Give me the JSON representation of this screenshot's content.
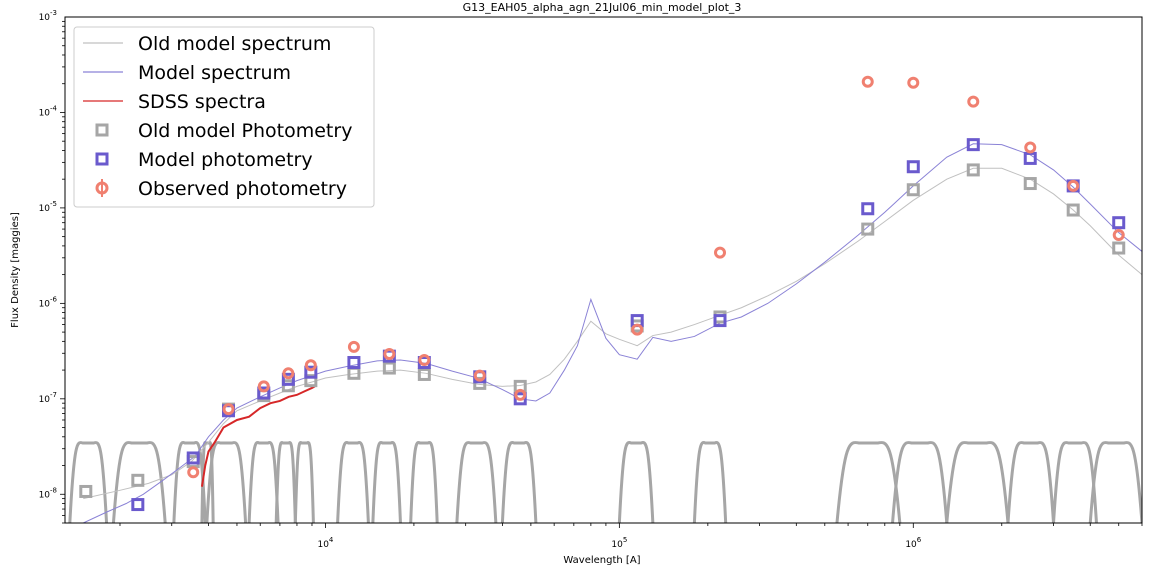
{
  "chart_data": {
    "type": "scatter",
    "title": "G13_EAH05_alpha_agn_21Jul06_min_model_plot_3",
    "xlabel": "Wavelength [A]",
    "ylabel": "Flux Density [maggies]",
    "xscale": "log",
    "yscale": "log",
    "xlim": [
      1300,
      6000000
    ],
    "ylim": [
      5e-09,
      0.001
    ],
    "x_ticks": [
      {
        "value": 10000,
        "label": "10^4"
      },
      {
        "value": 100000,
        "label": "10^5"
      },
      {
        "value": 1000000,
        "label": "10^6"
      }
    ],
    "y_ticks": [
      {
        "value": 1e-08,
        "label": "10^-8"
      },
      {
        "value": 1e-07,
        "label": "10^-7"
      },
      {
        "value": 1e-06,
        "label": "10^-6"
      },
      {
        "value": 1e-05,
        "label": "10^-5"
      },
      {
        "value": 0.0001,
        "label": "10^-4"
      },
      {
        "value": 0.001,
        "label": "10^-3"
      }
    ],
    "legend_position": "top-left",
    "legend": [
      {
        "label": "Old model spectrum",
        "kind": "line",
        "color": "#c0c0c0"
      },
      {
        "label": "Model spectrum",
        "kind": "line",
        "color": "#8a82d6"
      },
      {
        "label": "SDSS spectra",
        "kind": "line",
        "color": "#d62728"
      },
      {
        "label": "Old model Photometry",
        "kind": "square",
        "color": "#a6a6a6"
      },
      {
        "label": "Model photometry",
        "kind": "square",
        "color": "#6a5acd"
      },
      {
        "label": "Observed photometry",
        "kind": "circle",
        "color": "#f08070"
      }
    ],
    "series": [
      {
        "name": "Old model spectrum",
        "kind": "line",
        "color": "#c0c0c0",
        "x": [
          1500,
          2000,
          2500,
          3000,
          3500,
          4000,
          4500,
          5000,
          6000,
          7000,
          8000,
          9000,
          10000,
          12000,
          15000,
          18000,
          22000,
          27000,
          33000,
          40000,
          46000,
          52000,
          58000,
          65000,
          72000,
          80000,
          90000,
          100000,
          115000,
          130000,
          150000,
          180000,
          220000,
          260000,
          320000,
          400000,
          500000,
          650000,
          800000,
          1000000,
          1300000,
          1600000,
          2000000,
          2500000,
          3000000,
          3500000,
          4000000,
          5000000,
          6000000
        ],
        "y": [
          9e-09,
          1.1e-08,
          1.3e-08,
          1.6e-08,
          2.2e-08,
          3.5e-08,
          5.5e-08,
          7.5e-08,
          9.5e-08,
          1.15e-07,
          1.35e-07,
          1.5e-07,
          1.65e-07,
          1.8e-07,
          1.95e-07,
          2e-07,
          1.85e-07,
          1.6e-07,
          1.42e-07,
          1.35e-07,
          1.38e-07,
          1.5e-07,
          1.8e-07,
          2.6e-07,
          4e-07,
          6.5e-07,
          4.8e-07,
          4.2e-07,
          3.6e-07,
          4.6e-07,
          5e-07,
          6e-07,
          7.5e-07,
          9e-07,
          1.2e-06,
          1.7e-06,
          2.6e-06,
          4.5e-06,
          7.2e-06,
          1.2e-05,
          2e-05,
          2.6e-05,
          2.6e-05,
          2e-05,
          1.4e-05,
          9.5e-06,
          6.5e-06,
          3.2e-06,
          2e-06
        ]
      },
      {
        "name": "Model spectrum",
        "kind": "line",
        "color": "#8a82d6",
        "x": [
          1500,
          1800,
          2100,
          2400,
          2800,
          3200,
          3600,
          4000,
          4500,
          5000,
          6000,
          7000,
          8000,
          9000,
          10000,
          12000,
          15000,
          18000,
          22000,
          27000,
          33000,
          40000,
          46000,
          52000,
          58000,
          65000,
          72000,
          80000,
          90000,
          100000,
          115000,
          130000,
          150000,
          180000,
          220000,
          260000,
          320000,
          400000,
          500000,
          650000,
          800000,
          1000000,
          1300000,
          1600000,
          2000000,
          2500000,
          3000000,
          3500000,
          4000000,
          5000000,
          6000000
        ],
        "y": [
          5e-09,
          6.5e-09,
          8e-09,
          1e-08,
          1.4e-08,
          1.9e-08,
          2.5e-08,
          4e-08,
          6e-08,
          8e-08,
          1.05e-07,
          1.3e-07,
          1.55e-07,
          1.75e-07,
          1.95e-07,
          2.2e-07,
          2.5e-07,
          2.55e-07,
          2.35e-07,
          1.95e-07,
          1.65e-07,
          1.25e-07,
          1e-07,
          9.5e-08,
          1.15e-07,
          2e-07,
          3.6e-07,
          1.1e-06,
          4.3e-07,
          2.9e-07,
          2.6e-07,
          4.4e-07,
          4e-07,
          4.5e-07,
          6.2e-07,
          7.2e-07,
          1e-06,
          1.6e-06,
          2.7e-06,
          5.2e-06,
          9e-06,
          1.7e-05,
          3.4e-05,
          4.7e-05,
          4.6e-05,
          3.6e-05,
          2.5e-05,
          1.65e-05,
          1.1e-05,
          5.5e-06,
          3.5e-06
        ]
      },
      {
        "name": "SDSS spectra",
        "kind": "line",
        "color": "#d62728",
        "x": [
          3800,
          3900,
          4000,
          4200,
          4500,
          5000,
          5500,
          6000,
          6500,
          7000,
          7500,
          8000,
          8500,
          9000,
          9200
        ],
        "y": [
          1.2e-08,
          2e-08,
          2.8e-08,
          3.5e-08,
          5e-08,
          6e-08,
          6.5e-08,
          8e-08,
          9e-08,
          9.5e-08,
          1.05e-07,
          1.1e-07,
          1.2e-07,
          1.3e-07,
          1.35e-07
        ]
      },
      {
        "name": "Old model Photometry",
        "kind": "square",
        "color": "#a6a6a6",
        "x": [
          1530,
          2300,
          3550,
          4680,
          6170,
          7480,
          8920,
          12500,
          16500,
          21700,
          33500,
          46000,
          115000,
          220000,
          700000,
          1000000,
          1600000,
          2500000,
          3500000,
          5000000
        ],
        "y": [
          1.07e-08,
          1.4e-08,
          2.2e-08,
          7.8e-08,
          1.08e-07,
          1.37e-07,
          1.55e-07,
          1.85e-07,
          2.1e-07,
          1.8e-07,
          1.45e-07,
          1.35e-07,
          5.8e-07,
          7.2e-07,
          6e-06,
          1.55e-05,
          2.5e-05,
          1.8e-05,
          9.5e-06,
          3.8e-06
        ]
      },
      {
        "name": "Model photometry",
        "kind": "square",
        "color": "#6a5acd",
        "x": [
          2300,
          3550,
          4680,
          6170,
          7480,
          8920,
          12500,
          16500,
          21700,
          33500,
          46000,
          115000,
          220000,
          700000,
          1000000,
          1600000,
          2500000,
          3500000,
          5000000
        ],
        "y": [
          7.8e-09,
          2.4e-08,
          7.5e-08,
          1.15e-07,
          1.6e-07,
          1.9e-07,
          2.4e-07,
          2.8e-07,
          2.4e-07,
          1.7e-07,
          1e-07,
          6.6e-07,
          6.6e-07,
          9.8e-06,
          2.7e-05,
          4.6e-05,
          3.3e-05,
          1.7e-05,
          7e-06
        ]
      },
      {
        "name": "Observed photometry",
        "kind": "circle",
        "color": "#f08070",
        "x": [
          3550,
          4680,
          6170,
          7480,
          8920,
          12500,
          16500,
          21700,
          33500,
          46000,
          115000,
          220000,
          700000,
          1000000,
          1600000,
          2500000,
          3500000,
          5000000
        ],
        "y": [
          1.7e-08,
          7.8e-08,
          1.35e-07,
          1.85e-07,
          2.25e-07,
          3.5e-07,
          2.95e-07,
          2.55e-07,
          1.75e-07,
          1.1e-07,
          5.3e-07,
          3.4e-06,
          0.00021,
          0.000205,
          0.00013,
          4.3e-05,
          1.7e-05,
          5.2e-06
        ]
      }
    ]
  }
}
